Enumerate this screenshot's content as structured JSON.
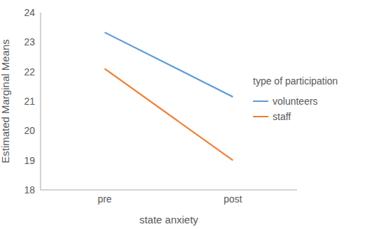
{
  "chart_data": {
    "type": "line",
    "x_label": "state anxiety",
    "y_label": "Estimated Marginal Means",
    "legend_title": "type of participation",
    "categories": [
      "pre",
      "post"
    ],
    "series": [
      {
        "name": "volunteers",
        "color": "#5b9bd5",
        "values": [
          23.33,
          21.15
        ]
      },
      {
        "name": "staff",
        "color": "#ed7d31",
        "values": [
          22.1,
          19.0
        ]
      }
    ],
    "ylim": [
      18,
      24
    ],
    "yticks": [
      18,
      19,
      20,
      21,
      22,
      23,
      24
    ],
    "grid": false,
    "legend": "right"
  }
}
